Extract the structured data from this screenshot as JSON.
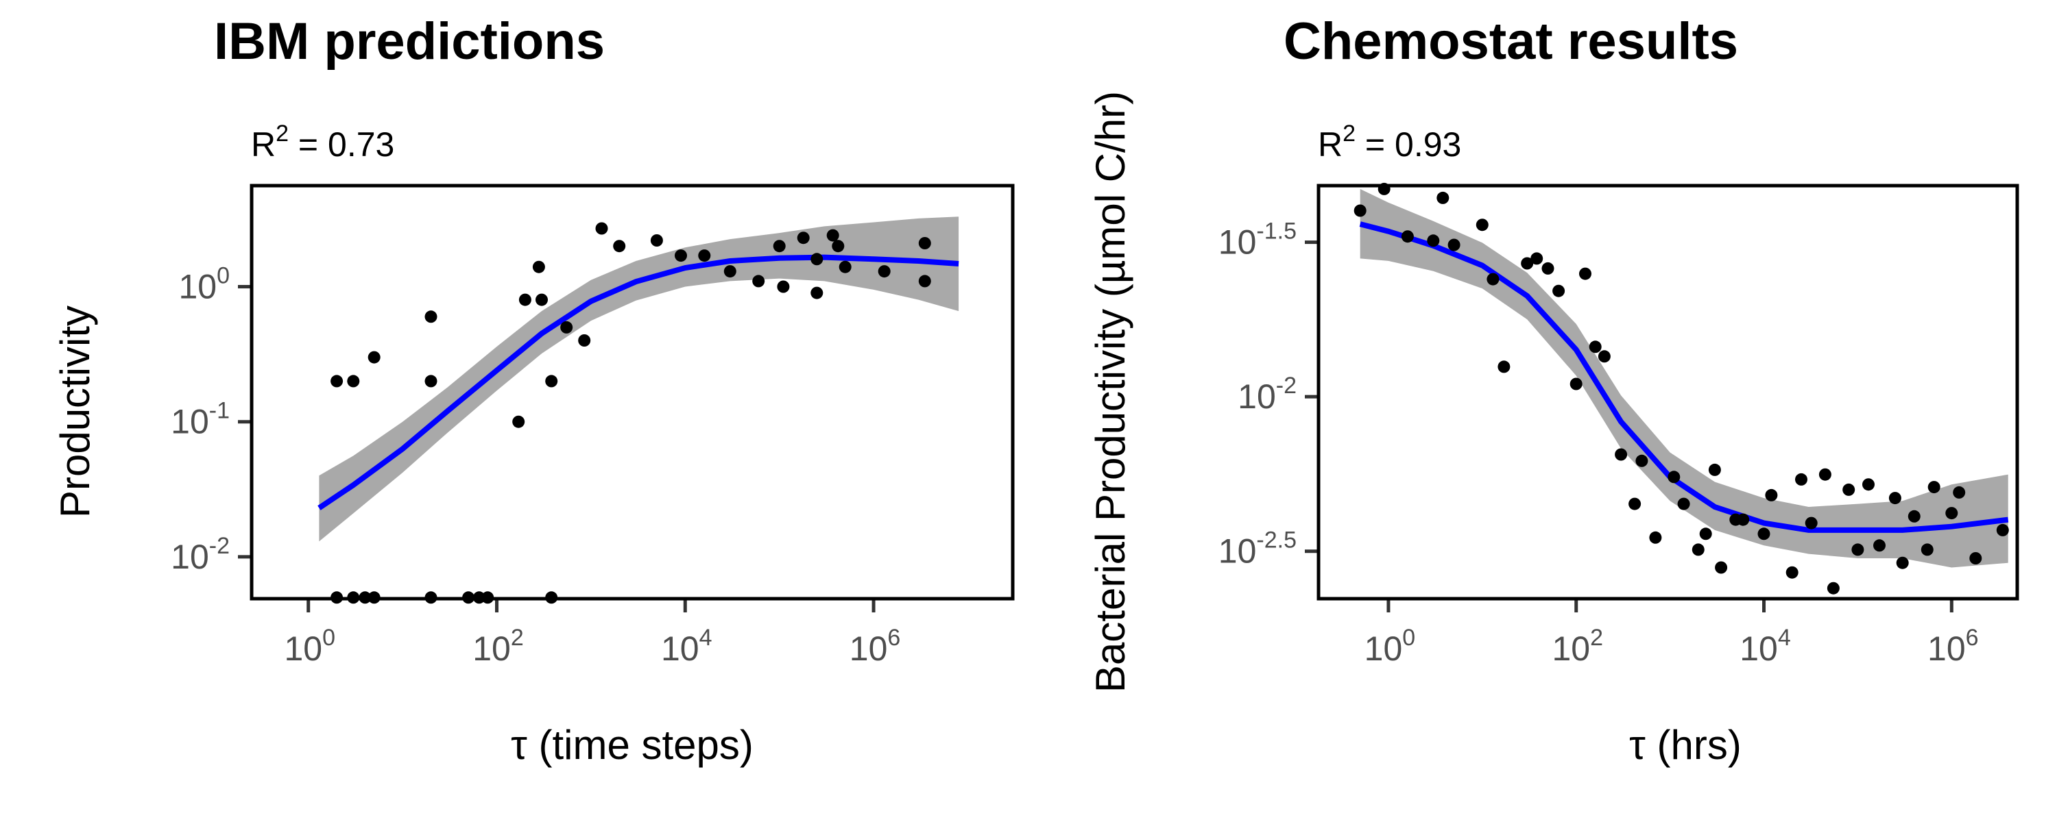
{
  "chart_data": [
    {
      "type": "scatter",
      "title": "IBM predictions",
      "annotation": {
        "base": "R",
        "sup": "2",
        "rest": " = 0.73"
      },
      "xlabel": "τ (time steps)",
      "ylabel": "Productivity",
      "x_scale": "log10",
      "y_scale": "log10",
      "xlim": [
        0.25,
        30000000
      ],
      "ylim": [
        0.0049,
        5.6
      ],
      "x_ticks": [
        {
          "base": "10",
          "exp": "0",
          "value": 1
        },
        {
          "base": "10",
          "exp": "2",
          "value": 100
        },
        {
          "base": "10",
          "exp": "4",
          "value": 10000
        },
        {
          "base": "10",
          "exp": "6",
          "value": 1000000
        }
      ],
      "y_ticks": [
        {
          "base": "10",
          "exp": "-2",
          "value": 0.01
        },
        {
          "base": "10",
          "exp": "-1",
          "value": 0.1
        },
        {
          "base": "10",
          "exp": "0",
          "value": 1
        }
      ],
      "points": [
        {
          "x": 2,
          "y": 0.2
        },
        {
          "x": 3,
          "y": 0.2
        },
        {
          "x": 5,
          "y": 0.3
        },
        {
          "x": 20,
          "y": 0.6
        },
        {
          "x": 20,
          "y": 0.2
        },
        {
          "x": 170,
          "y": 0.1
        },
        {
          "x": 200,
          "y": 0.8
        },
        {
          "x": 280,
          "y": 1.4
        },
        {
          "x": 300,
          "y": 0.8
        },
        {
          "x": 380,
          "y": 0.2
        },
        {
          "x": 550,
          "y": 0.5
        },
        {
          "x": 850,
          "y": 0.4
        },
        {
          "x": 1300,
          "y": 2.7
        },
        {
          "x": 2000,
          "y": 2.0
        },
        {
          "x": 5000,
          "y": 2.2
        },
        {
          "x": 9000,
          "y": 1.7
        },
        {
          "x": 16000,
          "y": 1.7
        },
        {
          "x": 30000,
          "y": 1.3
        },
        {
          "x": 60000,
          "y": 1.1
        },
        {
          "x": 100000,
          "y": 2.0
        },
        {
          "x": 110000,
          "y": 1.0
        },
        {
          "x": 180000,
          "y": 2.3
        },
        {
          "x": 250000,
          "y": 1.6
        },
        {
          "x": 250000,
          "y": 0.9
        },
        {
          "x": 370000,
          "y": 2.4
        },
        {
          "x": 420000,
          "y": 2.0
        },
        {
          "x": 500000,
          "y": 1.4
        },
        {
          "x": 1300000,
          "y": 1.3
        },
        {
          "x": 3500000,
          "y": 2.1
        },
        {
          "x": 3500000,
          "y": 1.1
        },
        {
          "x": 2,
          "y": 0.005
        },
        {
          "x": 3,
          "y": 0.005
        },
        {
          "x": 4,
          "y": 0.005
        },
        {
          "x": 5,
          "y": 0.005
        },
        {
          "x": 20,
          "y": 0.005
        },
        {
          "x": 50,
          "y": 0.005
        },
        {
          "x": 65,
          "y": 0.005
        },
        {
          "x": 80,
          "y": 0.005
        },
        {
          "x": 380,
          "y": 0.005
        }
      ],
      "fit": [
        {
          "x": 1.3,
          "y": 0.023,
          "lo": 0.013,
          "hi": 0.04
        },
        {
          "x": 3,
          "y": 0.034,
          "lo": 0.021,
          "hi": 0.056
        },
        {
          "x": 10,
          "y": 0.063,
          "lo": 0.042,
          "hi": 0.1
        },
        {
          "x": 30,
          "y": 0.12,
          "lo": 0.083,
          "hi": 0.18
        },
        {
          "x": 100,
          "y": 0.24,
          "lo": 0.17,
          "hi": 0.36
        },
        {
          "x": 300,
          "y": 0.45,
          "lo": 0.32,
          "hi": 0.66
        },
        {
          "x": 1000,
          "y": 0.78,
          "lo": 0.56,
          "hi": 1.12
        },
        {
          "x": 3000,
          "y": 1.09,
          "lo": 0.79,
          "hi": 1.55
        },
        {
          "x": 10000,
          "y": 1.38,
          "lo": 1.0,
          "hi": 1.95
        },
        {
          "x": 30000,
          "y": 1.55,
          "lo": 1.1,
          "hi": 2.25
        },
        {
          "x": 100000,
          "y": 1.63,
          "lo": 1.15,
          "hi": 2.5
        },
        {
          "x": 300000,
          "y": 1.65,
          "lo": 1.1,
          "hi": 2.8
        },
        {
          "x": 1000000,
          "y": 1.6,
          "lo": 0.95,
          "hi": 3.0
        },
        {
          "x": 3000000,
          "y": 1.55,
          "lo": 0.8,
          "hi": 3.2
        },
        {
          "x": 8000000,
          "y": 1.48,
          "lo": 0.66,
          "hi": 3.3
        }
      ],
      "colors": {
        "points": "#000000",
        "fit_line": "#0000ff",
        "ribbon": "#a9a9a9"
      }
    },
    {
      "type": "scatter",
      "title": "Chemostat results",
      "annotation": {
        "base": "R",
        "sup": "2",
        "rest": " = 0.93"
      },
      "xlabel": "τ (hrs)",
      "ylabel": "Bacterial Productivity (µmol C/hr)",
      "x_scale": "log10",
      "y_scale": "log10",
      "xlim": [
        0.18,
        5000000
      ],
      "ylim": [
        0.00222,
        0.0482
      ],
      "x_ticks": [
        {
          "base": "10",
          "exp": "0",
          "value": 1
        },
        {
          "base": "10",
          "exp": "2",
          "value": 100
        },
        {
          "base": "10",
          "exp": "4",
          "value": 10000
        },
        {
          "base": "10",
          "exp": "6",
          "value": 1000000
        }
      ],
      "y_ticks": [
        {
          "base": "10",
          "exp": "-2.5",
          "value": 0.003162
        },
        {
          "base": "10",
          "exp": "-2",
          "value": 0.01
        },
        {
          "base": "10",
          "exp": "-1.5",
          "value": 0.03162
        }
      ],
      "points": [
        {
          "x": 0.5,
          "y": 0.04
        },
        {
          "x": 0.9,
          "y": 0.047
        },
        {
          "x": 1.6,
          "y": 0.033
        },
        {
          "x": 3,
          "y": 0.032
        },
        {
          "x": 3.8,
          "y": 0.044
        },
        {
          "x": 5,
          "y": 0.031
        },
        {
          "x": 10,
          "y": 0.036
        },
        {
          "x": 13,
          "y": 0.024
        },
        {
          "x": 17,
          "y": 0.0125
        },
        {
          "x": 30,
          "y": 0.027
        },
        {
          "x": 38,
          "y": 0.028
        },
        {
          "x": 50,
          "y": 0.026
        },
        {
          "x": 65,
          "y": 0.022
        },
        {
          "x": 100,
          "y": 0.011
        },
        {
          "x": 125,
          "y": 0.025
        },
        {
          "x": 160,
          "y": 0.0145
        },
        {
          "x": 200,
          "y": 0.0135
        },
        {
          "x": 300,
          "y": 0.0065
        },
        {
          "x": 420,
          "y": 0.0045
        },
        {
          "x": 500,
          "y": 0.0062
        },
        {
          "x": 700,
          "y": 0.0035
        },
        {
          "x": 1100,
          "y": 0.0055
        },
        {
          "x": 1400,
          "y": 0.0045
        },
        {
          "x": 2000,
          "y": 0.0032
        },
        {
          "x": 2400,
          "y": 0.0036
        },
        {
          "x": 3000,
          "y": 0.0058
        },
        {
          "x": 3500,
          "y": 0.0028
        },
        {
          "x": 5000,
          "y": 0.004
        },
        {
          "x": 6000,
          "y": 0.004
        },
        {
          "x": 10000,
          "y": 0.0036
        },
        {
          "x": 12000,
          "y": 0.0048
        },
        {
          "x": 20000,
          "y": 0.0027
        },
        {
          "x": 25000,
          "y": 0.0054
        },
        {
          "x": 32000,
          "y": 0.0039
        },
        {
          "x": 45000,
          "y": 0.0056
        },
        {
          "x": 55000,
          "y": 0.0024
        },
        {
          "x": 80000,
          "y": 0.005
        },
        {
          "x": 100000,
          "y": 0.0032
        },
        {
          "x": 130000,
          "y": 0.0052
        },
        {
          "x": 170000,
          "y": 0.0033
        },
        {
          "x": 250000,
          "y": 0.0047
        },
        {
          "x": 300000,
          "y": 0.0029
        },
        {
          "x": 400000,
          "y": 0.0041
        },
        {
          "x": 550000,
          "y": 0.0032
        },
        {
          "x": 650000,
          "y": 0.0051
        },
        {
          "x": 1000000,
          "y": 0.0042
        },
        {
          "x": 1200000,
          "y": 0.0049
        },
        {
          "x": 1800000,
          "y": 0.003
        },
        {
          "x": 3500000,
          "y": 0.0037
        }
      ],
      "fit": [
        {
          "x": 0.5,
          "y": 0.0362,
          "lo": 0.028,
          "hi": 0.047
        },
        {
          "x": 1,
          "y": 0.0343,
          "lo": 0.0275,
          "hi": 0.0425
        },
        {
          "x": 3,
          "y": 0.0308,
          "lo": 0.0255,
          "hi": 0.037
        },
        {
          "x": 10,
          "y": 0.0266,
          "lo": 0.0224,
          "hi": 0.0315
        },
        {
          "x": 30,
          "y": 0.0212,
          "lo": 0.0178,
          "hi": 0.0252
        },
        {
          "x": 100,
          "y": 0.0142,
          "lo": 0.0117,
          "hi": 0.0172
        },
        {
          "x": 300,
          "y": 0.0083,
          "lo": 0.0068,
          "hi": 0.0101
        },
        {
          "x": 1000,
          "y": 0.0055,
          "lo": 0.0046,
          "hi": 0.0066
        },
        {
          "x": 3000,
          "y": 0.0044,
          "lo": 0.0037,
          "hi": 0.0053
        },
        {
          "x": 10000,
          "y": 0.0039,
          "lo": 0.0033,
          "hi": 0.0047
        },
        {
          "x": 30000,
          "y": 0.0037,
          "lo": 0.0031,
          "hi": 0.0044
        },
        {
          "x": 100000,
          "y": 0.0037,
          "lo": 0.003,
          "hi": 0.0045
        },
        {
          "x": 300000,
          "y": 0.0037,
          "lo": 0.003,
          "hi": 0.0046
        },
        {
          "x": 1000000,
          "y": 0.0038,
          "lo": 0.0028,
          "hi": 0.0052
        },
        {
          "x": 4000000,
          "y": 0.004,
          "lo": 0.0029,
          "hi": 0.0056
        }
      ],
      "colors": {
        "points": "#000000",
        "fit_line": "#0000ff",
        "ribbon": "#a9a9a9"
      }
    }
  ]
}
